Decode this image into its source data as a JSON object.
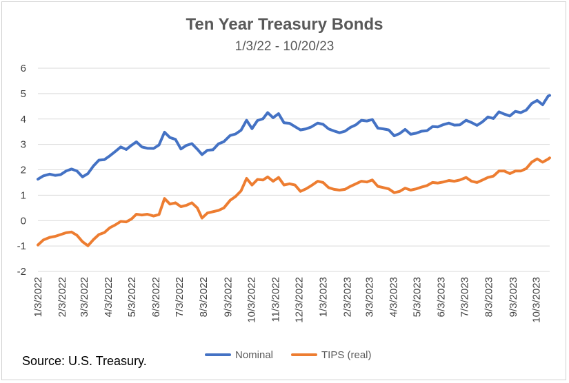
{
  "chart_data": {
    "type": "line",
    "title": "Ten Year Treasury Bonds",
    "subtitle": "1/3/22 - 10/20/23",
    "source": "Source: U.S. Treasury.",
    "xlabel": "",
    "ylabel": "",
    "ylim": [
      -2,
      6
    ],
    "yticks": [
      "-2",
      "-1",
      "0",
      "1",
      "2",
      "3",
      "4",
      "5",
      "6"
    ],
    "xlim": [
      "1/3/2022",
      "10/20/2023"
    ],
    "xticks": [
      "1/3/2022",
      "2/3/2022",
      "3/3/2022",
      "4/3/2022",
      "5/3/2022",
      "6/3/2022",
      "7/3/2022",
      "8/3/2022",
      "9/3/2022",
      "10/3/2022",
      "11/3/2022",
      "12/3/2022",
      "1/3/2023",
      "2/3/2023",
      "3/3/2023",
      "4/3/2023",
      "5/3/2023",
      "6/3/2023",
      "7/3/2023",
      "8/3/2023",
      "9/3/2023",
      "10/3/2023"
    ],
    "grid": true,
    "legend_position": "bottom",
    "series": [
      {
        "name": "Nominal",
        "color": "#4472c4",
        "points": [
          [
            "1/3/2022",
            1.63
          ],
          [
            "1/10/2022",
            1.76
          ],
          [
            "1/18/2022",
            1.83
          ],
          [
            "1/25/2022",
            1.78
          ],
          [
            "2/1/2022",
            1.81
          ],
          [
            "2/8/2022",
            1.95
          ],
          [
            "2/15/2022",
            2.03
          ],
          [
            "2/22/2022",
            1.95
          ],
          [
            "3/1/2022",
            1.72
          ],
          [
            "3/8/2022",
            1.85
          ],
          [
            "3/15/2022",
            2.15
          ],
          [
            "3/22/2022",
            2.38
          ],
          [
            "3/29/2022",
            2.4
          ],
          [
            "4/5/2022",
            2.55
          ],
          [
            "4/12/2022",
            2.72
          ],
          [
            "4/19/2022",
            2.9
          ],
          [
            "4/26/2022",
            2.8
          ],
          [
            "5/3/2022",
            2.97
          ],
          [
            "5/9/2022",
            3.1
          ],
          [
            "5/16/2022",
            2.9
          ],
          [
            "5/23/2022",
            2.85
          ],
          [
            "5/31/2022",
            2.84
          ],
          [
            "6/7/2022",
            2.98
          ],
          [
            "6/14/2022",
            3.48
          ],
          [
            "6/21/2022",
            3.27
          ],
          [
            "6/28/2022",
            3.2
          ],
          [
            "7/5/2022",
            2.82
          ],
          [
            "7/12/2022",
            2.96
          ],
          [
            "7/19/2022",
            3.03
          ],
          [
            "7/26/2022",
            2.81
          ],
          [
            "8/1/2022",
            2.6
          ],
          [
            "8/8/2022",
            2.77
          ],
          [
            "8/15/2022",
            2.79
          ],
          [
            "8/22/2022",
            3.02
          ],
          [
            "8/29/2022",
            3.11
          ],
          [
            "9/6/2022",
            3.35
          ],
          [
            "9/13/2022",
            3.41
          ],
          [
            "9/20/2022",
            3.56
          ],
          [
            "9/27/2022",
            3.95
          ],
          [
            "10/4/2022",
            3.62
          ],
          [
            "10/11/2022",
            3.94
          ],
          [
            "10/18/2022",
            4.01
          ],
          [
            "10/24/2022",
            4.25
          ],
          [
            "10/31/2022",
            4.05
          ],
          [
            "11/7/2022",
            4.21
          ],
          [
            "11/14/2022",
            3.85
          ],
          [
            "11/21/2022",
            3.83
          ],
          [
            "11/28/2022",
            3.7
          ],
          [
            "12/5/2022",
            3.57
          ],
          [
            "12/12/2022",
            3.61
          ],
          [
            "12/19/2022",
            3.69
          ],
          [
            "12/27/2022",
            3.84
          ],
          [
            "1/3/2023",
            3.79
          ],
          [
            "1/10/2023",
            3.61
          ],
          [
            "1/17/2023",
            3.53
          ],
          [
            "1/24/2023",
            3.46
          ],
          [
            "1/31/2023",
            3.52
          ],
          [
            "2/7/2023",
            3.67
          ],
          [
            "2/14/2023",
            3.77
          ],
          [
            "2/21/2023",
            3.95
          ],
          [
            "2/28/2023",
            3.92
          ],
          [
            "3/7/2023",
            3.98
          ],
          [
            "3/14/2023",
            3.64
          ],
          [
            "3/21/2023",
            3.61
          ],
          [
            "3/28/2023",
            3.57
          ],
          [
            "4/4/2023",
            3.34
          ],
          [
            "4/11/2023",
            3.43
          ],
          [
            "4/18/2023",
            3.59
          ],
          [
            "4/25/2023",
            3.4
          ],
          [
            "5/2/2023",
            3.44
          ],
          [
            "5/9/2023",
            3.52
          ],
          [
            "5/16/2023",
            3.54
          ],
          [
            "5/23/2023",
            3.7
          ],
          [
            "5/30/2023",
            3.69
          ],
          [
            "6/6/2023",
            3.78
          ],
          [
            "6/13/2023",
            3.84
          ],
          [
            "6/20/2023",
            3.76
          ],
          [
            "6/27/2023",
            3.77
          ],
          [
            "7/5/2023",
            3.95
          ],
          [
            "7/12/2023",
            3.86
          ],
          [
            "7/19/2023",
            3.75
          ],
          [
            "7/26/2023",
            3.89
          ],
          [
            "8/2/2023",
            4.08
          ],
          [
            "8/9/2023",
            4.02
          ],
          [
            "8/16/2023",
            4.28
          ],
          [
            "8/23/2023",
            4.19
          ],
          [
            "8/30/2023",
            4.12
          ],
          [
            "9/6/2023",
            4.3
          ],
          [
            "9/13/2023",
            4.25
          ],
          [
            "9/20/2023",
            4.35
          ],
          [
            "9/27/2023",
            4.61
          ],
          [
            "10/4/2023",
            4.73
          ],
          [
            "10/11/2023",
            4.56
          ],
          [
            "10/18/2023",
            4.9
          ],
          [
            "10/20/2023",
            4.93
          ]
        ]
      },
      {
        "name": "TIPS (real)",
        "color": "#ed7d31",
        "points": [
          [
            "1/3/2022",
            -0.96
          ],
          [
            "1/10/2022",
            -0.76
          ],
          [
            "1/18/2022",
            -0.66
          ],
          [
            "1/25/2022",
            -0.62
          ],
          [
            "2/1/2022",
            -0.55
          ],
          [
            "2/8/2022",
            -0.48
          ],
          [
            "2/15/2022",
            -0.45
          ],
          [
            "2/22/2022",
            -0.58
          ],
          [
            "3/1/2022",
            -0.83
          ],
          [
            "3/8/2022",
            -0.99
          ],
          [
            "3/15/2022",
            -0.75
          ],
          [
            "3/22/2022",
            -0.55
          ],
          [
            "3/29/2022",
            -0.47
          ],
          [
            "4/5/2022",
            -0.28
          ],
          [
            "4/12/2022",
            -0.17
          ],
          [
            "4/19/2022",
            -0.03
          ],
          [
            "4/26/2022",
            -0.05
          ],
          [
            "5/3/2022",
            0.07
          ],
          [
            "5/9/2022",
            0.25
          ],
          [
            "5/16/2022",
            0.22
          ],
          [
            "5/23/2022",
            0.25
          ],
          [
            "5/31/2022",
            0.18
          ],
          [
            "6/7/2022",
            0.24
          ],
          [
            "6/14/2022",
            0.87
          ],
          [
            "6/21/2022",
            0.65
          ],
          [
            "6/28/2022",
            0.7
          ],
          [
            "7/5/2022",
            0.55
          ],
          [
            "7/12/2022",
            0.6
          ],
          [
            "7/19/2022",
            0.7
          ],
          [
            "7/26/2022",
            0.5
          ],
          [
            "8/1/2022",
            0.1
          ],
          [
            "8/8/2022",
            0.3
          ],
          [
            "8/15/2022",
            0.35
          ],
          [
            "8/22/2022",
            0.4
          ],
          [
            "8/29/2022",
            0.5
          ],
          [
            "9/6/2022",
            0.8
          ],
          [
            "9/13/2022",
            0.95
          ],
          [
            "9/20/2022",
            1.17
          ],
          [
            "9/27/2022",
            1.66
          ],
          [
            "10/4/2022",
            1.4
          ],
          [
            "10/11/2022",
            1.62
          ],
          [
            "10/18/2022",
            1.6
          ],
          [
            "10/24/2022",
            1.72
          ],
          [
            "10/31/2022",
            1.55
          ],
          [
            "11/7/2022",
            1.7
          ],
          [
            "11/14/2022",
            1.4
          ],
          [
            "11/21/2022",
            1.45
          ],
          [
            "11/28/2022",
            1.4
          ],
          [
            "12/5/2022",
            1.15
          ],
          [
            "12/12/2022",
            1.25
          ],
          [
            "12/19/2022",
            1.38
          ],
          [
            "12/27/2022",
            1.55
          ],
          [
            "1/3/2023",
            1.5
          ],
          [
            "1/10/2023",
            1.3
          ],
          [
            "1/17/2023",
            1.23
          ],
          [
            "1/24/2023",
            1.2
          ],
          [
            "1/31/2023",
            1.23
          ],
          [
            "2/7/2023",
            1.35
          ],
          [
            "2/14/2023",
            1.45
          ],
          [
            "2/21/2023",
            1.55
          ],
          [
            "2/28/2023",
            1.52
          ],
          [
            "3/7/2023",
            1.6
          ],
          [
            "3/14/2023",
            1.35
          ],
          [
            "3/21/2023",
            1.3
          ],
          [
            "3/28/2023",
            1.25
          ],
          [
            "4/4/2023",
            1.1
          ],
          [
            "4/11/2023",
            1.15
          ],
          [
            "4/18/2023",
            1.28
          ],
          [
            "4/25/2023",
            1.2
          ],
          [
            "5/2/2023",
            1.25
          ],
          [
            "5/9/2023",
            1.32
          ],
          [
            "5/16/2023",
            1.38
          ],
          [
            "5/23/2023",
            1.5
          ],
          [
            "5/30/2023",
            1.48
          ],
          [
            "6/6/2023",
            1.52
          ],
          [
            "6/13/2023",
            1.58
          ],
          [
            "6/20/2023",
            1.55
          ],
          [
            "6/27/2023",
            1.6
          ],
          [
            "7/5/2023",
            1.7
          ],
          [
            "7/12/2023",
            1.55
          ],
          [
            "7/19/2023",
            1.5
          ],
          [
            "7/26/2023",
            1.6
          ],
          [
            "8/2/2023",
            1.7
          ],
          [
            "8/9/2023",
            1.75
          ],
          [
            "8/16/2023",
            1.95
          ],
          [
            "8/23/2023",
            1.95
          ],
          [
            "8/30/2023",
            1.85
          ],
          [
            "9/6/2023",
            1.95
          ],
          [
            "9/13/2023",
            1.95
          ],
          [
            "9/20/2023",
            2.05
          ],
          [
            "9/27/2023",
            2.3
          ],
          [
            "10/4/2023",
            2.43
          ],
          [
            "10/11/2023",
            2.3
          ],
          [
            "10/18/2023",
            2.42
          ],
          [
            "10/20/2023",
            2.47
          ]
        ]
      }
    ]
  }
}
